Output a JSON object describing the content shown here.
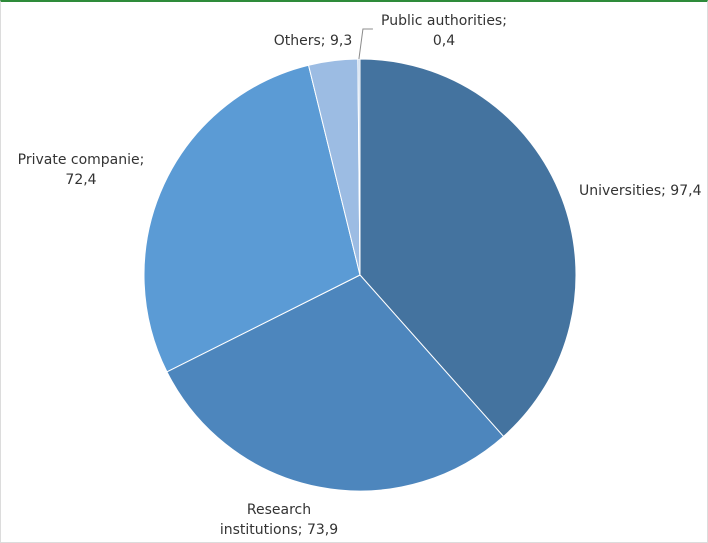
{
  "chart_data": {
    "type": "pie",
    "title": "",
    "slices": [
      {
        "label_lines": [
          "Universities; 97,4"
        ],
        "value": 97.4,
        "color": "#44739f"
      },
      {
        "label_lines": [
          "Research",
          "institutions; 73,9"
        ],
        "value": 73.9,
        "color": "#4d86bd"
      },
      {
        "label_lines": [
          "Private companie;",
          "72,4"
        ],
        "value": 72.4,
        "color": "#5b9bd5"
      },
      {
        "label_lines": [
          "Others; 9,3"
        ],
        "value": 9.3,
        "color": "#9cbce3"
      },
      {
        "label_lines": [
          "Public authorities;",
          "0,4"
        ],
        "value": 0.4,
        "color": "#bdd1ea"
      }
    ],
    "start_angle_deg": 0,
    "direction": "clockwise",
    "legend": "none",
    "data_labels": "outside"
  }
}
